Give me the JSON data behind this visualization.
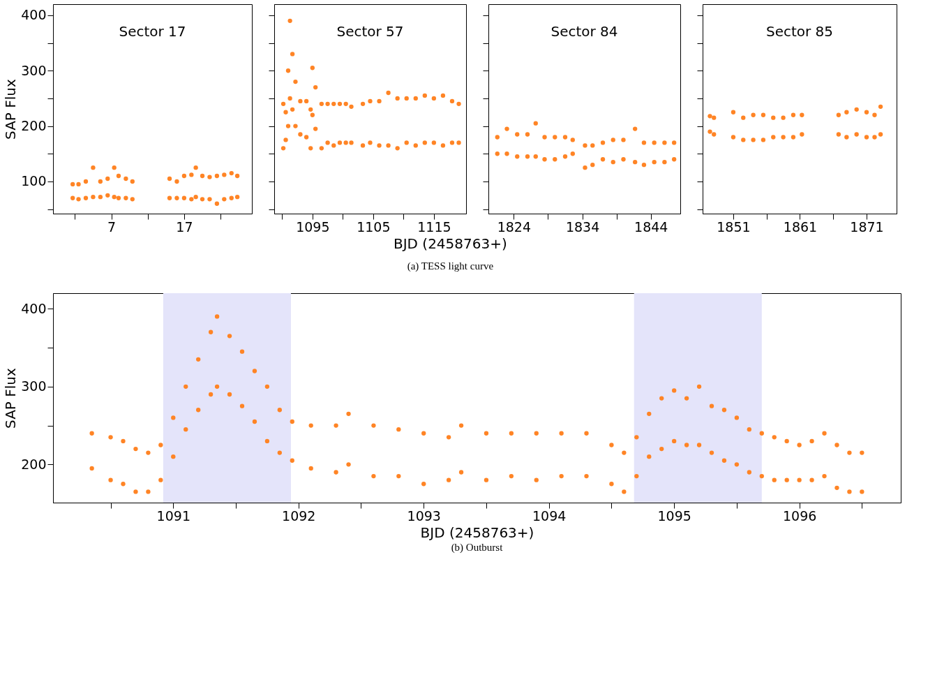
{
  "chart_data": [
    {
      "type": "scatter",
      "title": "Sector 17",
      "ylabel": "SAP Flux",
      "marker": "circle",
      "xlim": [
        -1,
        26.3
      ],
      "ylim": [
        42,
        420
      ],
      "xticks": [
        {
          "value": 2,
          "label": null
        },
        7,
        {
          "value": 12,
          "label": null
        },
        17,
        {
          "value": 22,
          "label": null
        }
      ],
      "yticks": [
        {
          "value": 50,
          "label": null
        },
        100,
        {
          "value": 150,
          "label": null
        },
        200,
        {
          "value": 250,
          "label": null
        },
        300,
        {
          "value": 350,
          "label": null
        },
        400
      ],
      "series": [
        {
          "color": "#ff8425",
          "x": [
            1.7,
            1.7,
            2.5,
            2.5,
            3.5,
            3.5,
            4.5,
            4.5,
            5.5,
            5.5,
            6.5,
            6.5,
            7.4,
            7.4,
            8.0,
            8.0,
            9.0,
            9.0,
            9.9,
            9.9,
            15.0,
            15.0,
            16,
            16,
            17,
            17,
            18,
            18,
            18.6,
            18.6,
            19.5,
            19.5,
            20.5,
            20.5,
            21.5,
            21.5,
            22.5,
            22.5,
            23.5,
            23.5,
            24.3,
            24.3
          ],
          "values": [
            70,
            95,
            68,
            95,
            70,
            100,
            72,
            125,
            72,
            100,
            75,
            105,
            72,
            125,
            70,
            110,
            70,
            105,
            68,
            100,
            70,
            105,
            70,
            100,
            70,
            110,
            68,
            112,
            72,
            125,
            68,
            110,
            68,
            108,
            60,
            110,
            68,
            112,
            70,
            115,
            72,
            110
          ]
        }
      ]
    },
    {
      "type": "scatter",
      "title": "Sector 57",
      "xlabel": "BJD (2458763+)",
      "annotations": [
        "(a)  TESS light curve"
      ],
      "marker": "circle",
      "tick_labels": "x",
      "xlim": [
        1088.7,
        1120.3
      ],
      "ylim": [
        42,
        420
      ],
      "xticks": [
        {
          "value": 1090,
          "label": null
        },
        1095,
        {
          "value": 1100,
          "label": null
        },
        1105,
        {
          "value": 1110,
          "label": null
        },
        1115
      ],
      "yticks": [
        {
          "value": 50,
          "label": null
        },
        100,
        {
          "value": 150,
          "label": null
        },
        200,
        {
          "value": 250,
          "label": null
        },
        300,
        {
          "value": 350,
          "label": null
        },
        400
      ],
      "series": [
        {
          "color": "#ff8425",
          "x": [
            1090.2,
            1090.2,
            1090.6,
            1090.6,
            1091.0,
            1091.0,
            1091.3,
            1091.3,
            1091.7,
            1091.7,
            1092.2,
            1092.2,
            1093,
            1093,
            1094,
            1094,
            1094.7,
            1094.7,
            1095,
            1095,
            1095.5,
            1095.5,
            1096.5,
            1096.5,
            1097.5,
            1097.5,
            1098.5,
            1098.5,
            1099.5,
            1099.5,
            1100.5,
            1100.5,
            1101.4,
            1101.4,
            1103.3,
            1103.3,
            1104.5,
            1104.5,
            1106,
            1106,
            1107.5,
            1107.5,
            1109,
            1109,
            1110.5,
            1110.5,
            1112,
            1112,
            1113.5,
            1113.5,
            1115,
            1115,
            1116.5,
            1116.5,
            1118,
            1118,
            1119.1,
            1119.1
          ],
          "values": [
            160,
            240,
            175,
            225,
            200,
            300,
            250,
            390,
            230,
            330,
            200,
            280,
            185,
            245,
            180,
            245,
            160,
            230,
            220,
            305,
            195,
            270,
            160,
            240,
            170,
            240,
            165,
            240,
            170,
            240,
            170,
            240,
            170,
            235,
            165,
            240,
            170,
            245,
            165,
            245,
            165,
            260,
            160,
            250,
            170,
            250,
            165,
            250,
            170,
            255,
            170,
            250,
            165,
            255,
            170,
            245,
            170,
            240
          ]
        }
      ]
    },
    {
      "type": "scatter",
      "title": "Sector 84",
      "marker": "circle",
      "tick_labels": "x",
      "xlim": [
        1820.3,
        1848.3
      ],
      "ylim": [
        42,
        420
      ],
      "xticks": [
        1824,
        {
          "value": 1829,
          "label": null
        },
        1834,
        {
          "value": 1839,
          "label": null
        },
        1844
      ],
      "yticks": [
        {
          "value": 50,
          "label": null
        },
        100,
        {
          "value": 150,
          "label": null
        },
        200,
        {
          "value": 250,
          "label": null
        },
        300,
        {
          "value": 350,
          "label": null
        },
        400
      ],
      "series": [
        {
          "color": "#ff8425",
          "x": [
            1821.6,
            1821.6,
            1823,
            1823,
            1824.5,
            1824.5,
            1826,
            1826,
            1827.2,
            1827.2,
            1828.5,
            1828.5,
            1830,
            1830,
            1831.5,
            1831.5,
            1832.6,
            1832.6,
            1834.4,
            1834.4,
            1835.5,
            1835.5,
            1837,
            1837,
            1838.5,
            1838.5,
            1840,
            1840,
            1841.7,
            1841.7,
            1843,
            1843,
            1844.5,
            1844.5,
            1846,
            1846,
            1847.4,
            1847.4
          ],
          "values": [
            150,
            180,
            150,
            195,
            145,
            185,
            145,
            185,
            145,
            205,
            140,
            180,
            140,
            180,
            145,
            180,
            150,
            175,
            125,
            165,
            130,
            165,
            140,
            170,
            135,
            175,
            140,
            175,
            135,
            195,
            130,
            170,
            135,
            170,
            135,
            170,
            140,
            170
          ]
        }
      ]
    },
    {
      "type": "scatter",
      "title": "Sector 85",
      "marker": "circle",
      "tick_labels": "x",
      "xlim": [
        1846.4,
        1875.5
      ],
      "ylim": [
        42,
        420
      ],
      "xticks": [
        1851,
        {
          "value": 1856,
          "label": null
        },
        1861,
        {
          "value": 1866,
          "label": null
        },
        1871
      ],
      "yticks": [
        {
          "value": 50,
          "label": null
        },
        100,
        {
          "value": 150,
          "label": null
        },
        200,
        {
          "value": 250,
          "label": null
        },
        300,
        {
          "value": 350,
          "label": null
        },
        400
      ],
      "series": [
        {
          "color": "#ff8425",
          "x": [
            1847.5,
            1847.5,
            1848.1,
            1848.1,
            1851,
            1851,
            1852.5,
            1852.5,
            1854,
            1854,
            1855.5,
            1855.5,
            1857,
            1857,
            1858.5,
            1858.5,
            1860,
            1860,
            1861.3,
            1861.3,
            1866.8,
            1866.8,
            1868,
            1868,
            1869.5,
            1869.5,
            1871,
            1871,
            1872.2,
            1872.2,
            1873.1,
            1873.1
          ],
          "values": [
            190,
            218,
            185,
            215,
            180,
            225,
            175,
            215,
            175,
            220,
            175,
            220,
            180,
            215,
            180,
            215,
            180,
            220,
            185,
            220,
            185,
            220,
            180,
            225,
            185,
            230,
            180,
            225,
            180,
            220,
            185,
            235
          ]
        }
      ]
    },
    {
      "type": "scatter",
      "xlabel": "BJD (2458763+)",
      "ylabel": "SAP Flux",
      "annotations": [
        "(b)  Outburst"
      ],
      "marker": "circle",
      "xlim": [
        1090.04,
        1096.81
      ],
      "ylim": [
        151,
        420
      ],
      "xticks": [
        {
          "value": 1090.5,
          "label": null
        },
        1091,
        {
          "value": 1091.5,
          "label": null
        },
        1092,
        {
          "value": 1092.5,
          "label": null
        },
        1093,
        {
          "value": 1093.5,
          "label": null
        },
        1094,
        {
          "value": 1094.5,
          "label": null
        },
        1095,
        {
          "value": 1095.5,
          "label": null
        },
        1096,
        {
          "value": 1096.5,
          "label": null
        }
      ],
      "yticks": [
        200,
        {
          "value": 250,
          "label": null
        },
        300,
        {
          "value": 350,
          "label": null
        },
        400
      ],
      "bands": [
        {
          "axis": "x",
          "from": 1090.92,
          "to": 1091.94,
          "color": "#e4e4fa"
        },
        {
          "axis": "x",
          "from": 1094.68,
          "to": 1095.7,
          "color": "#e4e4fa"
        }
      ],
      "series": [
        {
          "color": "#ff8425",
          "x": [
            1090.35,
            1090.35,
            1090.5,
            1090.5,
            1090.6,
            1090.6,
            1090.7,
            1090.7,
            1090.8,
            1090.8,
            1090.9,
            1090.9,
            1091.0,
            1091.0,
            1091.1,
            1091.1,
            1091.2,
            1091.2,
            1091.3,
            1091.3,
            1091.35,
            1091.35,
            1091.45,
            1091.45,
            1091.55,
            1091.55,
            1091.65,
            1091.65,
            1091.75,
            1091.75,
            1091.85,
            1091.85,
            1091.95,
            1091.95,
            1092.1,
            1092.1,
            1092.3,
            1092.3,
            1092.4,
            1092.4,
            1092.6,
            1092.6,
            1092.8,
            1092.8,
            1093.0,
            1093.0,
            1093.2,
            1093.2,
            1093.3,
            1093.3,
            1093.5,
            1093.5,
            1093.7,
            1093.7,
            1093.9,
            1093.9,
            1094.1,
            1094.1,
            1094.3,
            1094.3,
            1094.5,
            1094.5,
            1094.6,
            1094.6,
            1094.7,
            1094.7,
            1094.8,
            1094.8,
            1094.9,
            1094.9,
            1095.0,
            1095.0,
            1095.1,
            1095.1,
            1095.2,
            1095.2,
            1095.3,
            1095.3,
            1095.4,
            1095.4,
            1095.5,
            1095.5,
            1095.6,
            1095.6,
            1095.7,
            1095.7,
            1095.8,
            1095.8,
            1095.9,
            1095.9,
            1096.0,
            1096.0,
            1096.1,
            1096.1,
            1096.2,
            1096.2,
            1096.3,
            1096.3,
            1096.4,
            1096.4,
            1096.5,
            1096.5
          ],
          "values": [
            195,
            240,
            180,
            235,
            175,
            230,
            165,
            220,
            165,
            215,
            180,
            225,
            210,
            260,
            245,
            300,
            270,
            335,
            290,
            370,
            300,
            390,
            290,
            365,
            275,
            345,
            255,
            320,
            230,
            300,
            215,
            270,
            205,
            255,
            195,
            250,
            190,
            250,
            200,
            265,
            185,
            250,
            185,
            245,
            175,
            240,
            180,
            235,
            190,
            250,
            180,
            240,
            185,
            240,
            180,
            240,
            185,
            240,
            185,
            240,
            175,
            225,
            165,
            215,
            185,
            235,
            210,
            265,
            220,
            285,
            230,
            295,
            225,
            285,
            225,
            300,
            215,
            275,
            205,
            270,
            200,
            260,
            190,
            245,
            185,
            240,
            180,
            235,
            180,
            230,
            180,
            225,
            180,
            230,
            185,
            240,
            170,
            225,
            165,
            215,
            165,
            215
          ]
        }
      ]
    }
  ]
}
